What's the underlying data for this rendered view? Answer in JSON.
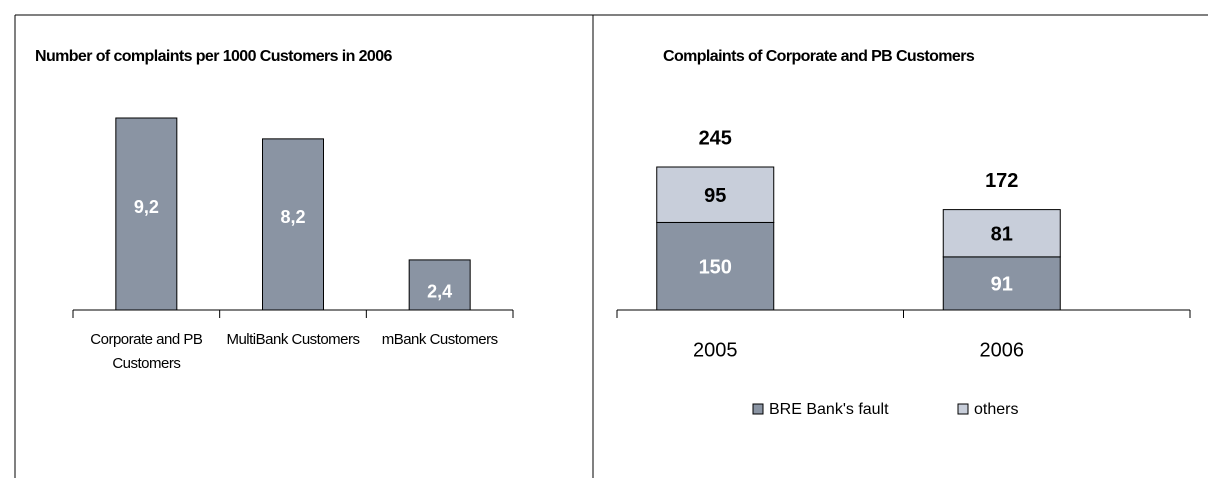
{
  "chart_data": [
    {
      "type": "bar",
      "title": "Number of complaints per 1000 Customers in 2006",
      "categories": [
        "Corporate and PB Customers",
        "MultiBank Customers",
        "mBank Customers"
      ],
      "values": [
        9.2,
        8.2,
        2.4
      ],
      "value_labels": [
        "9,2",
        "8,2",
        "2,4"
      ],
      "color": "#8a94a3"
    },
    {
      "type": "stacked_bar",
      "title": "Complaints of Corporate and PB Customers",
      "categories": [
        "2005",
        "2006"
      ],
      "series": [
        {
          "name": "BRE Bank's fault",
          "color": "#8a94a3",
          "values": [
            150,
            91
          ]
        },
        {
          "name": "others",
          "color": "#c8ceda",
          "values": [
            95,
            81
          ]
        }
      ],
      "totals": [
        245,
        172
      ],
      "legend": "bottom"
    }
  ]
}
